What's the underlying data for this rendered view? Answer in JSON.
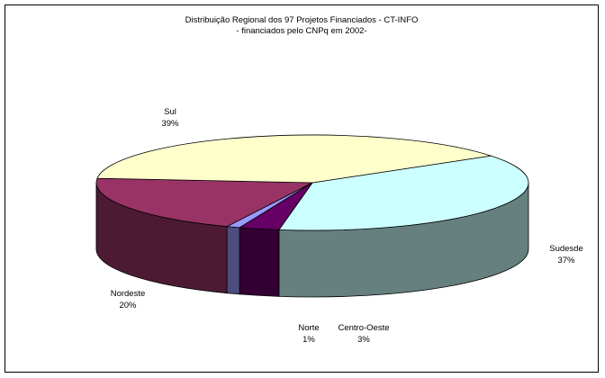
{
  "chart_data": {
    "type": "pie",
    "title": "Distribuição Regional dos 97 Projetos Financiados - CT-INFO",
    "subtitle": "- financiados pelo CNPq em 2002-",
    "slices": [
      {
        "label": "Sudesde",
        "percent_label": "37%",
        "value": 37,
        "color": "#ccffff",
        "side_color": "#668080"
      },
      {
        "label": "Centro-Oeste",
        "percent_label": "3%",
        "value": 3,
        "color": "#660066",
        "side_color": "#330033"
      },
      {
        "label": "Norte",
        "percent_label": "1%",
        "value": 1,
        "color": "#9999ff",
        "side_color": "#4d4d80"
      },
      {
        "label": "Nordeste",
        "percent_label": "20%",
        "value": 20,
        "color": "#993366",
        "side_color": "#4d1a33"
      },
      {
        "label": "Sul",
        "percent_label": "39%",
        "value": 39,
        "color": "#ffffcc",
        "side_color": "#808066"
      }
    ],
    "legend": "none",
    "style": "3d-exploded-none"
  }
}
